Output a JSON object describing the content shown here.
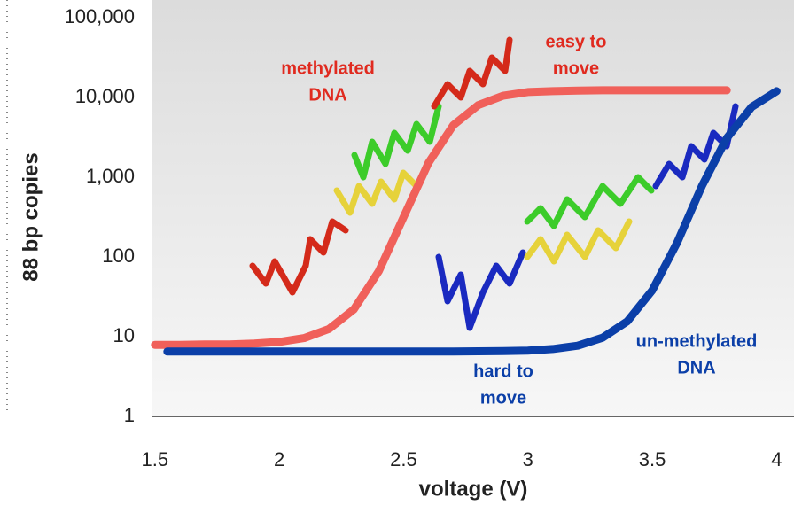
{
  "chart_data": {
    "type": "line",
    "xlabel": "voltage (V)",
    "ylabel": "88 bp copies",
    "xlim": [
      1.49,
      4.07
    ],
    "xticks": [
      1.5,
      2,
      2.5,
      3,
      3.5,
      4
    ],
    "ylim": [
      1,
      100000
    ],
    "yscale": "log",
    "yticks": [
      1,
      10,
      100,
      {
        "value": 1000,
        "label": "1,000"
      },
      {
        "value": 10000,
        "label": "10,000"
      },
      {
        "value": 100000,
        "label": "100,000"
      }
    ],
    "series": [
      {
        "name": "methylated",
        "color": "#f0605a",
        "x": [
          1.5,
          1.6,
          1.7,
          1.8,
          1.9,
          2.0,
          2.1,
          2.2,
          2.3,
          2.4,
          2.5,
          2.6,
          2.7,
          2.8,
          2.9,
          3.0,
          3.1,
          3.2,
          3.3,
          3.4,
          3.5,
          3.6,
          3.7,
          3.8
        ],
        "values": [
          7.9,
          7.9,
          8.0,
          8.0,
          8.2,
          8.6,
          9.6,
          12.5,
          22,
          66,
          316,
          1510,
          4500,
          8000,
          10500,
          11700,
          12000,
          12200,
          12300,
          12300,
          12300,
          12300,
          12300,
          12300
        ]
      },
      {
        "name": "un-methylated",
        "color": "#0b3fa8",
        "x": [
          1.55,
          1.7,
          1.9,
          2.1,
          2.3,
          2.5,
          2.7,
          2.9,
          3.0,
          3.1,
          3.2,
          3.3,
          3.4,
          3.5,
          3.6,
          3.7,
          3.8,
          3.9,
          4.0
        ],
        "values": [
          6.5,
          6.5,
          6.5,
          6.5,
          6.5,
          6.5,
          6.5,
          6.6,
          6.7,
          7.0,
          7.7,
          9.7,
          15.6,
          38,
          151,
          780,
          3100,
          7600,
          12000
        ]
      }
    ],
    "annotations": [
      {
        "lines": [
          "methylated",
          "DNA"
        ],
        "color": "#e02a1f"
      },
      {
        "lines": [
          "easy to",
          "move"
        ],
        "color": "#e02a1f"
      },
      {
        "lines": [
          "hard to",
          "move"
        ],
        "color": "#0b3fa8"
      },
      {
        "lines": [
          "un-methylated",
          "DNA"
        ],
        "color": "#0b3fa8"
      }
    ]
  }
}
